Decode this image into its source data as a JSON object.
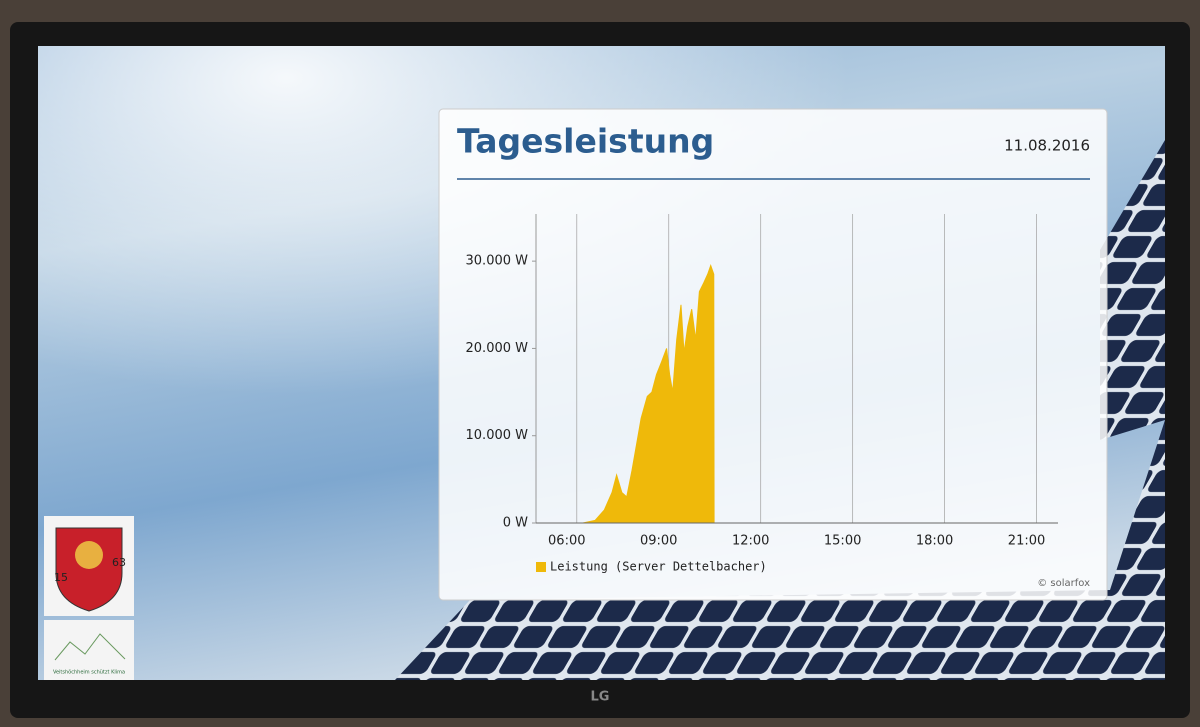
{
  "chart_data": {
    "type": "area",
    "title": "Tagesleistung",
    "subtitle": "11.08.2016",
    "x": [
      6.2,
      6.6,
      6.9,
      7.15,
      7.3,
      7.47,
      7.63,
      7.8,
      7.95,
      8.1,
      8.3,
      8.45,
      8.6,
      8.77,
      8.93,
      9.03,
      9.13,
      9.26,
      9.4,
      9.5,
      9.62,
      9.75,
      9.88,
      10.0,
      10.14,
      10.27,
      10.37,
      10.47,
      10.48
    ],
    "series": [
      {
        "name": "Leistung (Server Dettelbacher)",
        "color": "#efb90a",
        "values": [
          0,
          300,
          1500,
          3500,
          5500,
          3500,
          3000,
          6000,
          9000,
          12000,
          14500,
          15000,
          17000,
          18500,
          20000,
          17000,
          15000,
          21000,
          25000,
          19500,
          22500,
          24500,
          21000,
          26500,
          27500,
          28500,
          29500,
          28500,
          0
        ]
      }
    ],
    "xlim": [
      4.67,
      21.7
    ],
    "xticks": [
      {
        "value": 6,
        "label": "06:00"
      },
      {
        "value": 9,
        "label": "09:00"
      },
      {
        "value": 12,
        "label": "12:00"
      },
      {
        "value": 15,
        "label": "15:00"
      },
      {
        "value": 18,
        "label": "18:00"
      },
      {
        "value": 21,
        "label": "21:00"
      }
    ],
    "ylim": [
      0,
      35400
    ],
    "yticks": [
      {
        "value": 0,
        "label": "0 W"
      },
      {
        "value": 10000,
        "label": "10.000 W"
      },
      {
        "value": 20000,
        "label": "20.000 W"
      },
      {
        "value": 30000,
        "label": "30.000 W"
      }
    ],
    "grid": true,
    "legend": "bottom-left"
  },
  "screen": {
    "credit": "© solarfox",
    "brand": "LG",
    "badge": {
      "year_left": "15",
      "year_right": "63",
      "caption": "Veitshöchheim schützt Klima"
    }
  }
}
